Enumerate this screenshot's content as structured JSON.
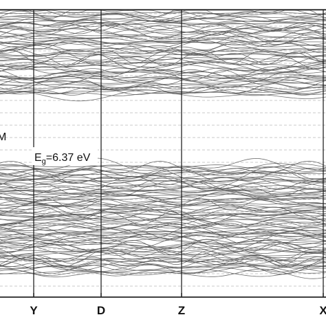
{
  "chart_data": {
    "type": "line",
    "title": "",
    "xlabel": "",
    "ylabel": "",
    "x_ticks": [
      "Y",
      "D",
      "Z",
      "X"
    ],
    "annotations": {
      "partial_label": "M",
      "gap_E": "E",
      "gap_sub": "g",
      "gap_value": "=6.37 eV"
    },
    "grid": "dashed horizontal",
    "band_gap_eV": 6.37,
    "series": [
      {
        "group": "conduction",
        "band_count": 70,
        "range_rel": [
          0.0,
          0.3
        ]
      },
      {
        "group": "valence",
        "band_count": 95,
        "range_rel": [
          0.54,
          0.92
        ]
      }
    ],
    "colors": {
      "band": "#555555",
      "grid": "#c8c8c8",
      "axis": "#111111",
      "frame": "#222222"
    }
  }
}
